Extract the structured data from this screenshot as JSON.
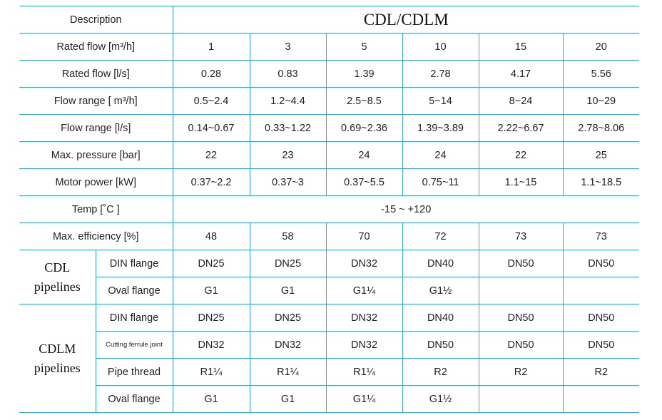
{
  "description_label": "Description",
  "series_title": "CDL/CDLM",
  "rows": [
    {
      "label": "Rated flow [m³/h]",
      "values": [
        "1",
        "3",
        "5",
        "10",
        "15",
        "20"
      ]
    },
    {
      "label": "Rated flow  [l/s]",
      "values": [
        "0.28",
        "0.83",
        "1.39",
        "2.78",
        "4.17",
        "5.56"
      ]
    },
    {
      "label": "Flow range [ m³/h]",
      "values": [
        "0.5~2.4",
        "1.2~4.4",
        "2.5~8.5",
        "5~14",
        "8~24",
        "10~29"
      ]
    },
    {
      "label": "Flow range  [l/s]",
      "values": [
        "0.14~0.67",
        "0.33~1.22",
        "0.69~2.36",
        "1.39~3.89",
        "2.22~6.67",
        "2.78~8.06"
      ]
    },
    {
      "label": "Max. pressure [bar]",
      "values": [
        "22",
        "23",
        "24",
        "24",
        "22",
        "25"
      ]
    },
    {
      "label": "Motor power [kW]",
      "values": [
        "0.37~2.2",
        "0.37~3",
        "0.37~5.5",
        "0.75~11",
        "1.1~15",
        "1.1~18.5"
      ]
    }
  ],
  "temp": {
    "label": "Temp [˚C ]",
    "value": "-15 ~ +120"
  },
  "efficiency": {
    "label": "Max. efficiency [%]",
    "values": [
      "48",
      "58",
      "70",
      "72",
      "73",
      "73"
    ]
  },
  "cdl_group": {
    "label_line1": "CDL",
    "label_line2": "pipelines",
    "rows": [
      {
        "label": "DIN flange",
        "values": [
          "DN25",
          "DN25",
          "DN32",
          "DN40",
          "DN50",
          "DN50"
        ]
      },
      {
        "label": "Oval flange",
        "values": [
          "G1",
          "G1",
          "G1¼",
          "G1½",
          "",
          ""
        ]
      }
    ]
  },
  "cdlm_group": {
    "label_line1": "CDLM",
    "label_line2": "pipelines",
    "rows": [
      {
        "label": "DIN flange",
        "values": [
          "DN25",
          "DN25",
          "DN32",
          "DN40",
          "DN50",
          "DN50"
        ]
      },
      {
        "label": "Cutting ferrule joint",
        "values": [
          "DN32",
          "DN32",
          "DN32",
          "DN50",
          "DN50",
          "DN50"
        ]
      },
      {
        "label": "Pipe thread",
        "values": [
          "R1¼",
          "R1¼",
          "R1¼",
          "R2",
          "R2",
          "R2"
        ]
      },
      {
        "label": "Oval flange",
        "values": [
          "G1",
          "G1",
          "G1¼",
          "G1½",
          "",
          ""
        ]
      }
    ]
  }
}
